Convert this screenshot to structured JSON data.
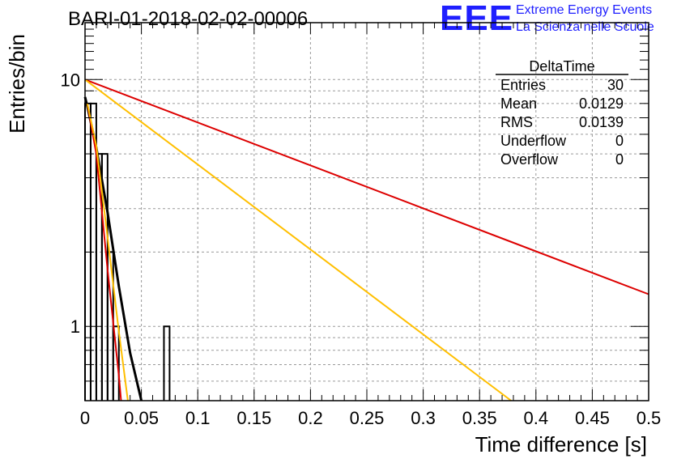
{
  "logo": {
    "letters": "EEE",
    "line1": "Extreme Energy Events",
    "line2": "La Scienza nelle Scuole"
  },
  "chart_data": {
    "type": "bar",
    "title": "BARI-01-2018-02-02-00006",
    "xlabel": "Time difference [s]",
    "ylabel": "Entries/bin",
    "xlim": [
      0,
      0.5
    ],
    "ylim": [
      0.5,
      17
    ],
    "yscale": "log",
    "grid": true,
    "x_ticks": [
      "0",
      "0.05",
      "0.1",
      "0.15",
      "0.2",
      "0.25",
      "0.3",
      "0.35",
      "0.4",
      "0.45",
      "0.5"
    ],
    "y_ticks": [
      "1",
      "10"
    ],
    "histogram": {
      "bin_width": 0.005,
      "bins": [
        {
          "x_low": 0.0,
          "value": 8
        },
        {
          "x_low": 0.005,
          "value": 8
        },
        {
          "x_low": 0.01,
          "value": 5
        },
        {
          "x_low": 0.015,
          "value": 5
        },
        {
          "x_low": 0.02,
          "value": 2
        },
        {
          "x_low": 0.025,
          "value": 1
        },
        {
          "x_low": 0.07,
          "value": 1
        }
      ]
    },
    "fits": [
      {
        "color": "#000000",
        "x": [
          0.0,
          0.002,
          0.01,
          0.02,
          0.03,
          0.04,
          0.05
        ],
        "y": [
          8.5,
          7.8,
          5.3,
          2.9,
          1.45,
          0.78,
          0.5
        ]
      },
      {
        "color": "#dd0000",
        "x": [
          0.002,
          0.01,
          0.02,
          0.03,
          0.032
        ],
        "y": [
          8.0,
          5.0,
          1.7,
          0.63,
          0.5
        ]
      },
      {
        "color": "#ffbf00",
        "x": [
          0.002,
          0.01,
          0.02,
          0.03,
          0.038
        ],
        "y": [
          8.0,
          5.4,
          2.3,
          0.95,
          0.5
        ]
      },
      {
        "color": "#dd0000",
        "x": [
          0.0,
          0.5
        ],
        "y": [
          10.0,
          1.35
        ]
      },
      {
        "color": "#ffbf00",
        "x": [
          0.0,
          0.378
        ],
        "y": [
          10.0,
          0.5
        ]
      }
    ],
    "stats_box": {
      "title": "DeltaTime",
      "rows": [
        {
          "label": "Entries",
          "value": "30"
        },
        {
          "label": "Mean",
          "value": "0.0129"
        },
        {
          "label": "RMS",
          "value": "0.0139"
        },
        {
          "label": "Underflow",
          "value": "0"
        },
        {
          "label": "Overflow",
          "value": "0"
        }
      ]
    }
  }
}
